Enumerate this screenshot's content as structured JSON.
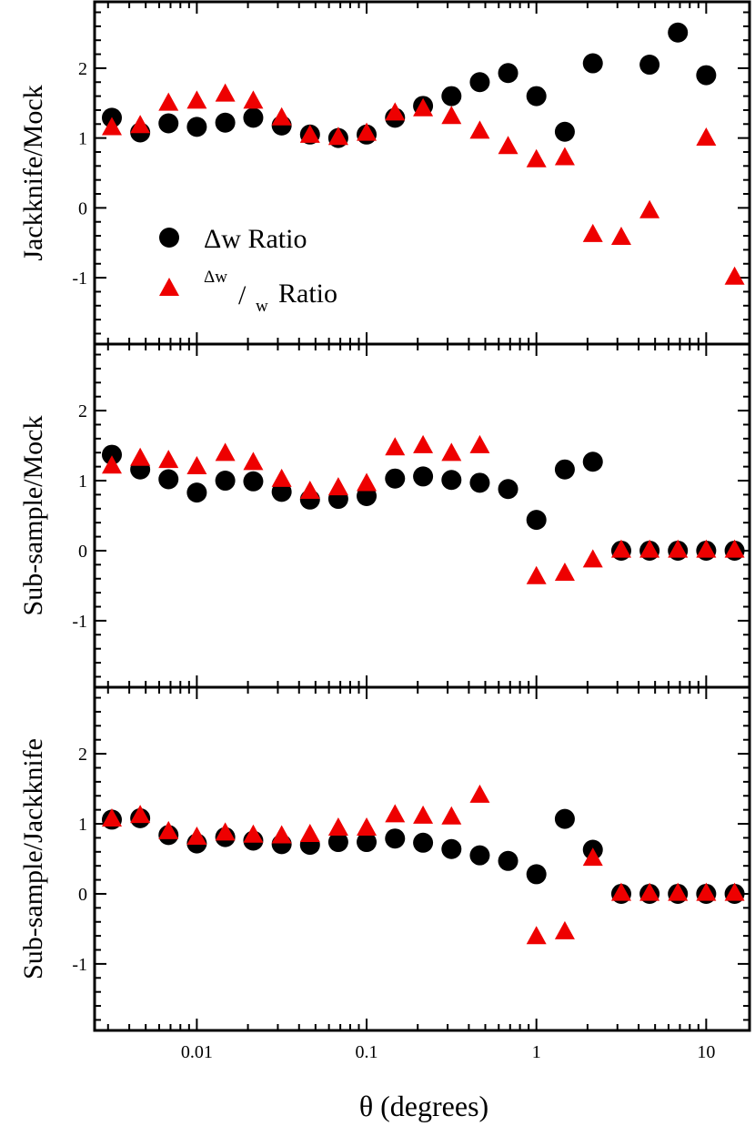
{
  "chart_data": {
    "type": "scatter",
    "xlabel": "θ (degrees)",
    "xscale": "log",
    "xlim": [
      0.0025,
      18
    ],
    "x_ticks": [
      {
        "value": 0.01,
        "label": "0.01"
      },
      {
        "value": 0.1,
        "label": "0.1"
      },
      {
        "value": 1,
        "label": "1"
      },
      {
        "value": 10,
        "label": "10"
      }
    ],
    "x": [
      0.00316,
      0.00464,
      0.00681,
      0.01,
      0.0147,
      0.0215,
      0.0316,
      0.0464,
      0.0681,
      0.1,
      0.147,
      0.215,
      0.316,
      0.464,
      0.681,
      1.0,
      1.47,
      2.15,
      3.16,
      4.64,
      6.81,
      10.0,
      14.7
    ],
    "legend": {
      "position": "left",
      "circle_label": "Δw Ratio",
      "triangle_num": "Δw",
      "triangle_slash": "/",
      "triangle_den": "w",
      "triangle_suffix": "Ratio"
    },
    "panels": [
      {
        "ylabel": "Jackknife/Mock",
        "ylim": [
          -1.95,
          2.95
        ],
        "y_ticks": [
          {
            "value": 2,
            "label": "2"
          },
          {
            "value": 1,
            "label": "1"
          },
          {
            "value": 0,
            "label": "0"
          },
          {
            "value": -1,
            "label": "-1"
          }
        ],
        "series": [
          {
            "name": "Δw Ratio",
            "marker": "circle",
            "color": "#000000",
            "values": [
              1.29,
              1.08,
              1.21,
              1.16,
              1.22,
              1.29,
              1.18,
              1.05,
              1.0,
              1.05,
              1.29,
              1.46,
              1.6,
              1.8,
              1.93,
              1.6,
              1.09,
              null,
              2.07,
              null,
              2.05,
              2.51,
              1.9
            ],
            "x_override": [
              0.00316,
              0.00464,
              0.00681,
              0.01,
              0.0147,
              0.0215,
              0.0316,
              0.0464,
              0.0681,
              0.1,
              0.147,
              0.215,
              0.316,
              0.464,
              0.681,
              1.0,
              1.47,
              2.15,
              2.15,
              4.64,
              4.64,
              6.81,
              10.0
            ]
          },
          {
            "name": "Δw/w Ratio",
            "marker": "triangle",
            "color": "#ee0000",
            "values": [
              1.14,
              1.17,
              1.49,
              1.52,
              1.62,
              1.52,
              1.28,
              1.03,
              1.0,
              1.06,
              1.35,
              1.41,
              1.3,
              1.09,
              0.87,
              0.68,
              0.71,
              -0.39,
              -0.43,
              -0.05,
              0.99,
              -1.0
            ],
            "x_override": [
              0.00316,
              0.00464,
              0.00681,
              0.01,
              0.0147,
              0.0215,
              0.0316,
              0.0464,
              0.0681,
              0.1,
              0.147,
              0.215,
              0.316,
              0.464,
              0.681,
              1.0,
              1.47,
              2.15,
              3.16,
              4.64,
              10.0,
              14.7
            ]
          }
        ]
      },
      {
        "ylabel": "Sub-sample/Mock",
        "ylim": [
          -1.95,
          2.95
        ],
        "y_ticks": [
          {
            "value": 2,
            "label": "2"
          },
          {
            "value": 1,
            "label": "1"
          },
          {
            "value": 0,
            "label": "0"
          },
          {
            "value": -1,
            "label": "-1"
          }
        ],
        "series": [
          {
            "name": "Δw Ratio",
            "marker": "circle",
            "color": "#000000",
            "values": [
              1.37,
              1.16,
              1.02,
              0.83,
              1.0,
              0.99,
              0.84,
              0.73,
              0.74,
              0.78,
              1.03,
              1.06,
              1.01,
              0.97,
              0.88,
              0.44,
              1.16,
              1.27,
              0.0,
              0.0,
              0.0,
              0.0,
              0.0
            ]
          },
          {
            "name": "Δw/w Ratio",
            "marker": "triangle",
            "color": "#ee0000",
            "values": [
              1.2,
              1.31,
              1.28,
              1.19,
              1.38,
              1.25,
              1.01,
              0.84,
              0.89,
              0.95,
              1.46,
              1.49,
              1.38,
              1.49,
              null,
              -0.38,
              -0.33,
              -0.14,
              0.0,
              0.0,
              0.0,
              0.0,
              0.0
            ]
          }
        ]
      },
      {
        "ylabel": "Sub-sample/Jackknife",
        "ylim": [
          -1.95,
          2.95
        ],
        "y_ticks": [
          {
            "value": 2,
            "label": "2"
          },
          {
            "value": 1,
            "label": "1"
          },
          {
            "value": 0,
            "label": "0"
          },
          {
            "value": -1,
            "label": "-1"
          }
        ],
        "series": [
          {
            "name": "Δw Ratio",
            "marker": "circle",
            "color": "#000000",
            "values": [
              1.06,
              1.08,
              0.84,
              0.72,
              0.81,
              0.76,
              0.71,
              0.7,
              0.74,
              0.74,
              0.79,
              0.73,
              0.64,
              0.55,
              0.47,
              0.28,
              1.07,
              0.63,
              0.0,
              0.0,
              0.0,
              0.0,
              0.0
            ]
          },
          {
            "name": "Δw/w Ratio",
            "marker": "triangle",
            "color": "#ee0000",
            "values": [
              1.06,
              1.11,
              0.88,
              0.8,
              0.86,
              0.83,
              0.82,
              0.84,
              0.93,
              0.93,
              1.12,
              1.1,
              1.09,
              1.4,
              null,
              -0.62,
              -0.55,
              0.5,
              0.0,
              0.0,
              0.0,
              0.0,
              0.0
            ]
          }
        ]
      }
    ]
  }
}
